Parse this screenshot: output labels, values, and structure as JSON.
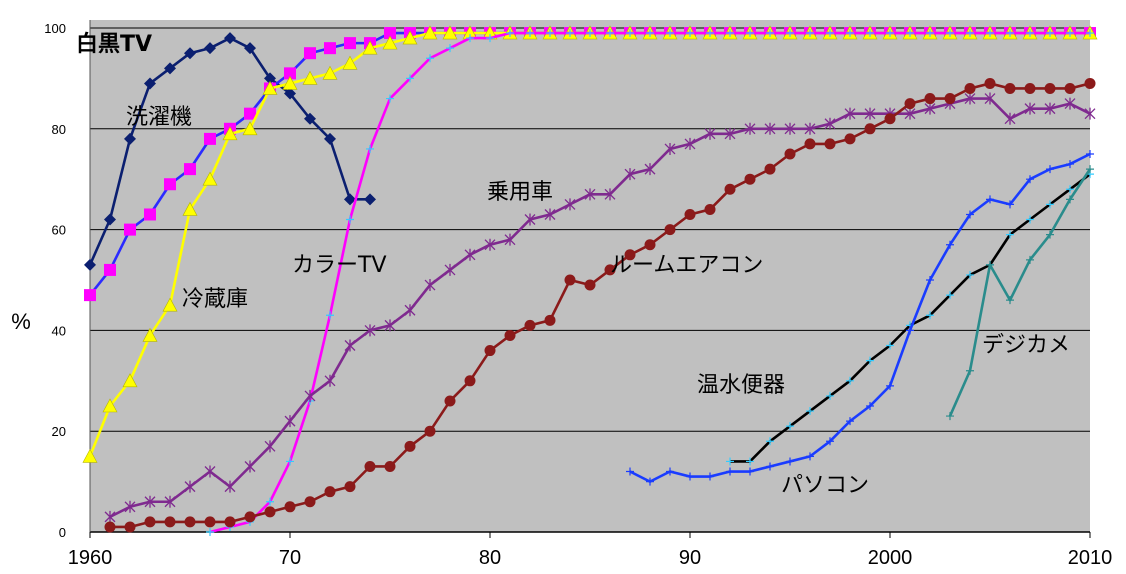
{
  "chart_data": {
    "type": "line",
    "title": "",
    "xlabel": "",
    "ylabel": "%",
    "xlim": [
      1960,
      2010
    ],
    "ylim": [
      0,
      100
    ],
    "x_ticks": [
      "1960",
      "70",
      "80",
      "90",
      "2000",
      "2010"
    ],
    "y_ticks": [
      "0",
      "20",
      "40",
      "60",
      "80",
      "100"
    ],
    "grid": true,
    "legend": "none",
    "background": "#c0c0c0",
    "series": [
      {
        "name": "白黒TV",
        "color": "#0b1f70",
        "marker": "diamond",
        "label_bold": true,
        "x": [
          1960,
          1961,
          1962,
          1963,
          1964,
          1965,
          1966,
          1967,
          1968,
          1969,
          1970,
          1971,
          1972,
          1973,
          1974
        ],
        "y": [
          53,
          62,
          78,
          89,
          92,
          95,
          96,
          98,
          96,
          90,
          87,
          82,
          78,
          66,
          66
        ]
      },
      {
        "name": "洗濯機",
        "color": "#2b2bff",
        "marker": "square",
        "marker_color": "#ff00ff",
        "label_bold": false,
        "x": [
          1960,
          1961,
          1962,
          1963,
          1964,
          1965,
          1966,
          1967,
          1968,
          1969,
          1970,
          1971,
          1972,
          1973,
          1974,
          1975,
          1976,
          1977,
          1978,
          1979,
          1980,
          1981,
          1982,
          1983,
          1984,
          1985,
          1986,
          1987,
          1988,
          1989,
          1990,
          1991,
          1992,
          1993,
          1994,
          1995,
          1996,
          1997,
          1998,
          1999,
          2000,
          2001,
          2002,
          2003,
          2004,
          2005,
          2006,
          2007,
          2008,
          2009,
          2010
        ],
        "y": [
          47,
          52,
          60,
          63,
          69,
          72,
          78,
          80,
          83,
          88,
          91,
          95,
          96,
          97,
          97,
          99,
          99,
          99,
          99,
          99,
          99,
          99,
          99,
          99,
          99,
          99,
          99,
          99,
          99,
          99,
          99,
          99,
          99,
          99,
          99,
          99,
          99,
          99,
          99,
          99,
          99,
          99,
          99,
          99,
          99,
          99,
          99,
          99,
          99,
          99,
          99
        ]
      },
      {
        "name": "冷蔵庫",
        "color": "#ffff00",
        "marker": "triangle",
        "marker_color": "#ffff00",
        "label_bold": false,
        "x": [
          1960,
          1961,
          1962,
          1963,
          1964,
          1965,
          1966,
          1967,
          1968,
          1969,
          1970,
          1971,
          1972,
          1973,
          1974,
          1975,
          1976,
          1977,
          1978,
          1979,
          1980,
          1981,
          1982,
          1983,
          1984,
          1985,
          1986,
          1987,
          1988,
          1989,
          1990,
          1991,
          1992,
          1993,
          1994,
          1995,
          1996,
          1997,
          1998,
          1999,
          2000,
          2001,
          2002,
          2003,
          2004,
          2005,
          2006,
          2007,
          2008,
          2009,
          2010
        ],
        "y": [
          15,
          25,
          30,
          39,
          45,
          64,
          70,
          79,
          80,
          88,
          89,
          90,
          91,
          93,
          96,
          97,
          98,
          99,
          99,
          99,
          99,
          99,
          99,
          99,
          99,
          99,
          99,
          99,
          99,
          99,
          99,
          99,
          99,
          99,
          99,
          99,
          99,
          99,
          99,
          99,
          99,
          99,
          99,
          99,
          99,
          99,
          99,
          99,
          99,
          99,
          99
        ]
      },
      {
        "name": "カラーTV",
        "color": "#ff00ff",
        "marker": "plus",
        "marker_color": "#33ccff",
        "label_bold": false,
        "x": [
          1966,
          1967,
          1968,
          1969,
          1970,
          1971,
          1972,
          1973,
          1974,
          1975,
          1976,
          1977,
          1978,
          1979,
          1980,
          1981,
          1982,
          1983,
          1984,
          1985,
          1986,
          1987,
          1988,
          1989,
          1990,
          1991,
          1992,
          1993,
          1994,
          1995,
          1996,
          1997,
          1998,
          1999,
          2000,
          2001,
          2002,
          2003,
          2004,
          2005,
          2006,
          2007,
          2008,
          2009,
          2010
        ],
        "y": [
          0,
          1,
          2,
          6,
          14,
          26,
          43,
          62,
          76,
          86,
          90,
          94,
          96,
          98,
          98,
          99,
          99,
          99,
          99,
          99,
          99,
          99,
          99,
          99,
          99,
          99,
          99,
          99,
          99,
          99,
          99,
          99,
          99,
          99,
          99,
          99,
          99,
          99,
          99,
          99,
          99,
          99,
          99,
          99,
          99
        ]
      },
      {
        "name": "乗用車",
        "color": "#7f2a8f",
        "marker": "star",
        "marker_color": "#7f2a8f",
        "label_bold": false,
        "x": [
          1961,
          1962,
          1963,
          1964,
          1965,
          1966,
          1967,
          1968,
          1969,
          1970,
          1971,
          1972,
          1973,
          1974,
          1975,
          1976,
          1977,
          1978,
          1979,
          1980,
          1981,
          1982,
          1983,
          1984,
          1985,
          1986,
          1987,
          1988,
          1989,
          1990,
          1991,
          1992,
          1993,
          1994,
          1995,
          1996,
          1997,
          1998,
          1999,
          2000,
          2001,
          2002,
          2003,
          2004,
          2005,
          2006,
          2007,
          2008,
          2009,
          2010
        ],
        "y": [
          3,
          5,
          6,
          6,
          9,
          12,
          9,
          13,
          17,
          22,
          27,
          30,
          37,
          40,
          41,
          44,
          49,
          52,
          55,
          57,
          58,
          62,
          63,
          65,
          67,
          67,
          71,
          72,
          76,
          77,
          79,
          79,
          80,
          80,
          80,
          80,
          81,
          83,
          83,
          83,
          83,
          84,
          85,
          86,
          86,
          82,
          84,
          84,
          85,
          83
        ]
      },
      {
        "name": "ルームエアコン",
        "color": "#8b1a1a",
        "marker": "circle",
        "marker_color": "#8b1a1a",
        "label_bold": false,
        "x": [
          1961,
          1962,
          1963,
          1964,
          1965,
          1966,
          1967,
          1968,
          1969,
          1970,
          1971,
          1972,
          1973,
          1974,
          1975,
          1976,
          1977,
          1978,
          1979,
          1980,
          1981,
          1982,
          1983,
          1984,
          1985,
          1986,
          1987,
          1988,
          1989,
          1990,
          1991,
          1992,
          1993,
          1994,
          1995,
          1996,
          1997,
          1998,
          1999,
          2000,
          2001,
          2002,
          2003,
          2004,
          2005,
          2006,
          2007,
          2008,
          2009,
          2010
        ],
        "y": [
          1,
          1,
          2,
          2,
          2,
          2,
          2,
          3,
          4,
          5,
          6,
          8,
          9,
          13,
          13,
          17,
          20,
          26,
          30,
          36,
          39,
          41,
          42,
          50,
          49,
          52,
          55,
          57,
          60,
          63,
          64,
          68,
          70,
          72,
          75,
          77,
          77,
          78,
          80,
          82,
          85,
          86,
          86,
          88,
          89,
          88,
          88,
          88,
          88,
          89
        ]
      },
      {
        "name": "温水便器",
        "color": "#000000",
        "marker": "plus",
        "marker_color": "#33ccff",
        "label_bold": false,
        "x": [
          1992,
          1993,
          1994,
          1995,
          1996,
          1997,
          1998,
          1999,
          2000,
          2001,
          2002,
          2003,
          2004,
          2005,
          2006,
          2007,
          2008,
          2009,
          2010
        ],
        "y": [
          14,
          14,
          18,
          21,
          24,
          27,
          30,
          34,
          37,
          41,
          43,
          47,
          51,
          53,
          59,
          62,
          65,
          68,
          71
        ]
      },
      {
        "name": "パソコン",
        "color": "#1a3cff",
        "marker": "plus",
        "marker_color": "#1a3cff",
        "label_bold": false,
        "x": [
          1987,
          1988,
          1989,
          1990,
          1991,
          1992,
          1993,
          1994,
          1995,
          1996,
          1997,
          1998,
          1999,
          2000,
          2001,
          2002,
          2003,
          2004,
          2005,
          2006,
          2007,
          2008,
          2009,
          2010
        ],
        "y": [
          12,
          10,
          12,
          11,
          11,
          12,
          12,
          13,
          14,
          15,
          18,
          22,
          25,
          29,
          40,
          50,
          57,
          63,
          66,
          65,
          70,
          72,
          73,
          75
        ]
      },
      {
        "name": "デジカメ",
        "color": "#2a8c8c",
        "marker": "plus",
        "marker_color": "#2a8c8c",
        "label_bold": false,
        "x": [
          2003,
          2004,
          2005,
          2006,
          2007,
          2008,
          2009,
          2010
        ],
        "y": [
          23,
          32,
          53,
          46,
          54,
          59,
          66,
          72
        ]
      }
    ]
  }
}
